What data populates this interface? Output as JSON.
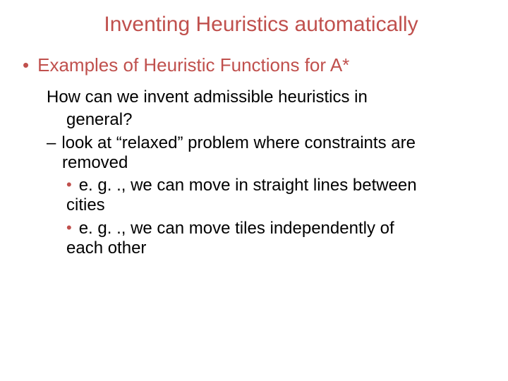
{
  "colors": {
    "accent": "#c0504d",
    "body_text": "#000000",
    "background": "#ffffff"
  },
  "typography": {
    "title_fontsize": 30,
    "level1_fontsize": 26,
    "body_fontsize": 24,
    "font_family": "Arial"
  },
  "slide": {
    "title": "Inventing Heuristics automatically",
    "level1_text": "Examples of Heuristic Functions for A*",
    "question_line1": "How can we invent admissible heuristics in",
    "question_line2": "general?",
    "relaxed_line1": "look at “relaxed” problem where constraints are",
    "relaxed_line2": "removed",
    "example1_line1": "e. g. ., we can move in straight lines between",
    "example1_line2": "cities",
    "example2_line1": "e. g. ., we can move tiles independently of",
    "example2_line2": "each other",
    "dash": "–",
    "dot": "•"
  }
}
